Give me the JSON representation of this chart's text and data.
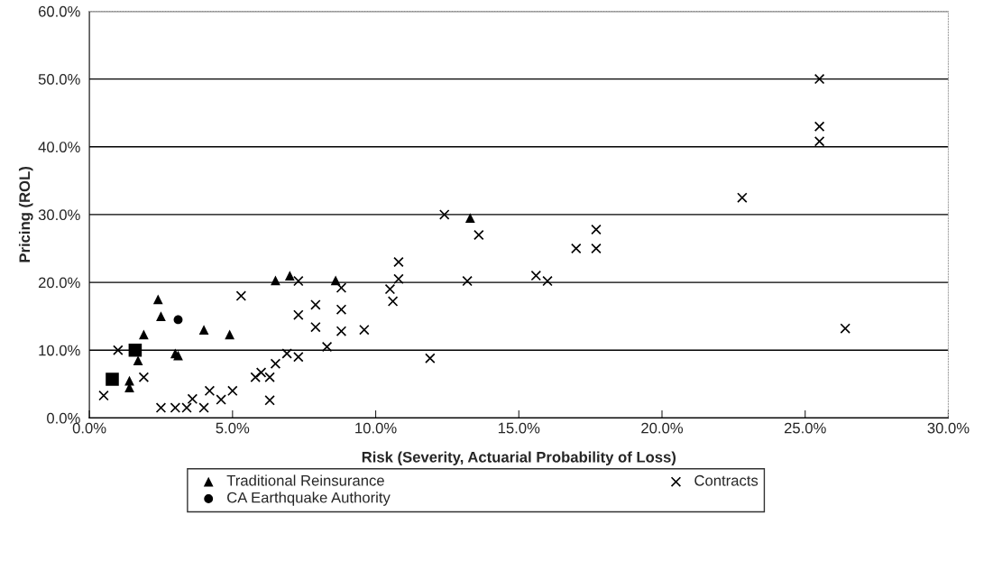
{
  "chart_data": {
    "type": "scatter",
    "xlabel": "Risk (Severity, Actuarial Probability of Loss)",
    "ylabel": "Pricing (ROL)",
    "xlim": [
      0,
      30
    ],
    "ylim": [
      0,
      60
    ],
    "xticks": [
      {
        "value": 0,
        "label": "0.0%"
      },
      {
        "value": 5,
        "label": "5.0%"
      },
      {
        "value": 10,
        "label": "10.0%"
      },
      {
        "value": 15,
        "label": "15.0%"
      },
      {
        "value": 20,
        "label": "20.0%"
      },
      {
        "value": 25,
        "label": "25.0%"
      },
      {
        "value": 30,
        "label": "30.0%"
      }
    ],
    "yticks": [
      {
        "value": 0,
        "label": "0.0%"
      },
      {
        "value": 10,
        "label": "10.0%"
      },
      {
        "value": 20,
        "label": "20.0%"
      },
      {
        "value": 30,
        "label": "30.0%"
      },
      {
        "value": 40,
        "label": "40.0%"
      },
      {
        "value": 50,
        "label": "50.0%"
      },
      {
        "value": 60,
        "label": "60.0%"
      }
    ],
    "grid": "y",
    "legend": "bottom",
    "series": [
      {
        "name": "Traditional Reinsurance",
        "color": "#000000",
        "marker": "triangle",
        "x": [
          1.4,
          1.4,
          1.7,
          1.9,
          2.4,
          2.5,
          3.0,
          3.1,
          4.0,
          4.9,
          6.5,
          7.0,
          8.6,
          13.3
        ],
        "values": [
          5.5,
          4.5,
          8.5,
          12.3,
          17.5,
          15,
          9.5,
          9.2,
          13,
          12.3,
          20.3,
          21,
          20.3,
          29.5
        ]
      },
      {
        "color": "#000000",
        "marker": "square",
        "x": [
          0.8,
          1.6
        ],
        "values": [
          5.7,
          10
        ]
      },
      {
        "name": "CA Earthquake Authority",
        "color": "#000000",
        "marker": "circle",
        "x": [
          3.1
        ],
        "values": [
          14.5
        ]
      },
      {
        "name": "Contracts",
        "color": "#000000",
        "marker": "cross",
        "x": [
          0.5,
          1.0,
          1.9,
          2.5,
          3.0,
          3.4,
          3.6,
          4.0,
          4.2,
          4.6,
          5.0,
          5.3,
          5.8,
          6.0,
          6.3,
          6.3,
          6.5,
          6.9,
          7.3,
          7.3,
          7.3,
          7.9,
          7.9,
          8.3,
          8.8,
          8.8,
          8.8,
          9.6,
          10.5,
          10.6,
          10.8,
          10.8,
          11.9,
          12.4,
          13.2,
          13.6,
          15.6,
          16.0,
          17.0,
          17.7,
          17.7,
          22.8,
          25.5,
          25.5,
          25.5,
          26.4
        ],
        "values": [
          3.3,
          10,
          6,
          1.5,
          1.5,
          1.5,
          2.8,
          1.5,
          4,
          2.7,
          4,
          18,
          6,
          6.7,
          6,
          2.6,
          8,
          9.5,
          15.2,
          9,
          20.2,
          16.7,
          13.4,
          10.5,
          19.2,
          16,
          12.8,
          13,
          19,
          17.2,
          23,
          20.5,
          8.8,
          30,
          20.2,
          27,
          21,
          20.2,
          25,
          27.8,
          25,
          32.5,
          50,
          43,
          40.8,
          13.2
        ]
      }
    ]
  }
}
